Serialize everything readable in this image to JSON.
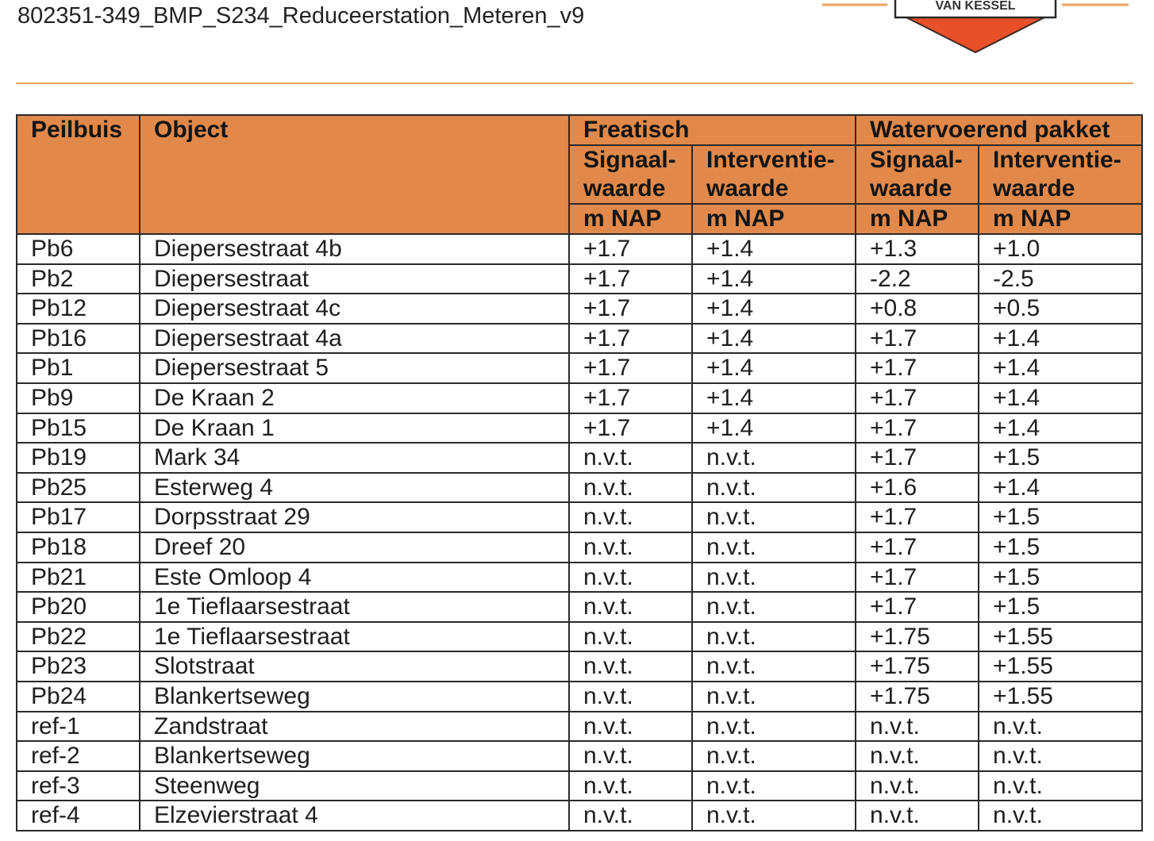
{
  "document": {
    "title": "802351-349_BMP_S234_Reduceerstation_Meteren_v9",
    "logo_text": "VAN KESSEL",
    "colors": {
      "header_fill": "#e0894a",
      "accent_line": "#e8a35b",
      "logo_red": "#e8502a"
    }
  },
  "table": {
    "headers": {
      "peilbuis": "Peilbuis",
      "object": "Object",
      "freatisch": "Freatisch",
      "watervoerend": "Watervoerend pakket",
      "signaal_line1": "Signaal-",
      "signaal_line2": "waarde",
      "interventie_line1": "Interventie-",
      "interventie_line2": "waarde",
      "unit": "m NAP"
    },
    "rows": [
      {
        "peilbuis": "Pb6",
        "object": "Diepersestraat 4b",
        "fr_signaal": "+1.7",
        "fr_interventie": "+1.4",
        "wv_signaal": "+1.3",
        "wv_interventie": "+1.0"
      },
      {
        "peilbuis": "Pb2",
        "object": "Diepersestraat",
        "fr_signaal": "+1.7",
        "fr_interventie": "+1.4",
        "wv_signaal": "-2.2",
        "wv_interventie": "-2.5"
      },
      {
        "peilbuis": "Pb12",
        "object": "Diepersestraat 4c",
        "fr_signaal": "+1.7",
        "fr_interventie": "+1.4",
        "wv_signaal": "+0.8",
        "wv_interventie": "+0.5"
      },
      {
        "peilbuis": "Pb16",
        "object": "Diepersestraat 4a",
        "fr_signaal": "+1.7",
        "fr_interventie": "+1.4",
        "wv_signaal": "+1.7",
        "wv_interventie": "+1.4"
      },
      {
        "peilbuis": "Pb1",
        "object": "Diepersestraat 5",
        "fr_signaal": "+1.7",
        "fr_interventie": "+1.4",
        "wv_signaal": "+1.7",
        "wv_interventie": "+1.4"
      },
      {
        "peilbuis": "Pb9",
        "object": "De Kraan 2",
        "fr_signaal": "+1.7",
        "fr_interventie": "+1.4",
        "wv_signaal": "+1.7",
        "wv_interventie": "+1.4"
      },
      {
        "peilbuis": "Pb15",
        "object": "De Kraan 1",
        "fr_signaal": "+1.7",
        "fr_interventie": "+1.4",
        "wv_signaal": "+1.7",
        "wv_interventie": "+1.4"
      },
      {
        "peilbuis": "Pb19",
        "object": "Mark 34",
        "fr_signaal": "n.v.t.",
        "fr_interventie": "n.v.t.",
        "wv_signaal": "+1.7",
        "wv_interventie": "+1.5"
      },
      {
        "peilbuis": "Pb25",
        "object": "Esterweg 4",
        "fr_signaal": "n.v.t.",
        "fr_interventie": "n.v.t.",
        "wv_signaal": "+1.6",
        "wv_interventie": "+1.4"
      },
      {
        "peilbuis": "Pb17",
        "object": "Dorpsstraat 29",
        "fr_signaal": "n.v.t.",
        "fr_interventie": "n.v.t.",
        "wv_signaal": "+1.7",
        "wv_interventie": "+1.5"
      },
      {
        "peilbuis": "Pb18",
        "object": "Dreef 20",
        "fr_signaal": "n.v.t.",
        "fr_interventie": "n.v.t.",
        "wv_signaal": "+1.7",
        "wv_interventie": "+1.5"
      },
      {
        "peilbuis": "Pb21",
        "object": "Este Omloop 4",
        "fr_signaal": "n.v.t.",
        "fr_interventie": "n.v.t.",
        "wv_signaal": "+1.7",
        "wv_interventie": "+1.5"
      },
      {
        "peilbuis": "Pb20",
        "object": "1e Tieflaarsestraat",
        "fr_signaal": "n.v.t.",
        "fr_interventie": "n.v.t.",
        "wv_signaal": "+1.7",
        "wv_interventie": "+1.5"
      },
      {
        "peilbuis": "Pb22",
        "object": "1e Tieflaarsestraat",
        "fr_signaal": "n.v.t.",
        "fr_interventie": "n.v.t.",
        "wv_signaal": "+1.75",
        "wv_interventie": "+1.55"
      },
      {
        "peilbuis": "Pb23",
        "object": "Slotstraat",
        "fr_signaal": "n.v.t.",
        "fr_interventie": "n.v.t.",
        "wv_signaal": "+1.75",
        "wv_interventie": "+1.55"
      },
      {
        "peilbuis": "Pb24",
        "object": "Blankertseweg",
        "fr_signaal": "n.v.t.",
        "fr_interventie": "n.v.t.",
        "wv_signaal": "+1.75",
        "wv_interventie": "+1.55"
      },
      {
        "peilbuis": "ref-1",
        "object": "Zandstraat",
        "fr_signaal": "n.v.t.",
        "fr_interventie": "n.v.t.",
        "wv_signaal": "n.v.t.",
        "wv_interventie": "n.v.t."
      },
      {
        "peilbuis": "ref-2",
        "object": "Blankertseweg",
        "fr_signaal": "n.v.t.",
        "fr_interventie": "n.v.t.",
        "wv_signaal": "n.v.t.",
        "wv_interventie": "n.v.t."
      },
      {
        "peilbuis": "ref-3",
        "object": "Steenweg",
        "fr_signaal": "n.v.t.",
        "fr_interventie": "n.v.t.",
        "wv_signaal": "n.v.t.",
        "wv_interventie": "n.v.t."
      },
      {
        "peilbuis": "ref-4",
        "object": "Elzevierstraat 4",
        "fr_signaal": "n.v.t.",
        "fr_interventie": "n.v.t.",
        "wv_signaal": "n.v.t.",
        "wv_interventie": "n.v.t."
      }
    ]
  }
}
